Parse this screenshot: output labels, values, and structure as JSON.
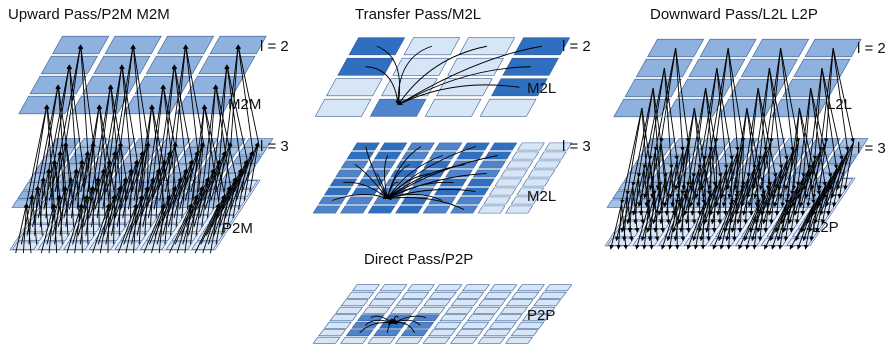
{
  "panels": {
    "upward": {
      "title": "Upward Pass/P2M M2M",
      "level_top": "l = 2",
      "level_bottom": "l = 3",
      "op_top": "M2M",
      "op_bottom": "P2M"
    },
    "transfer": {
      "title": "Transfer Pass/M2L",
      "level_top": "l = 2",
      "level_bottom": "l = 3",
      "op_top": "M2L",
      "op_bottom": "M2L"
    },
    "downward": {
      "title": "Downward Pass/L2L L2P",
      "level_top": "l = 2",
      "level_bottom": "l = 3",
      "op_top": "L2L",
      "op_bottom": "L2P"
    },
    "direct": {
      "title": "Direct Pass/P2P",
      "op": "P2P"
    }
  },
  "colors": {
    "light": "#d6e6f6",
    "medium": "#8fb1dd",
    "dark": "#2f6fc0",
    "mid_dark": "#4f84cc",
    "edge": "#3a5f96",
    "arrow": "#000000"
  }
}
